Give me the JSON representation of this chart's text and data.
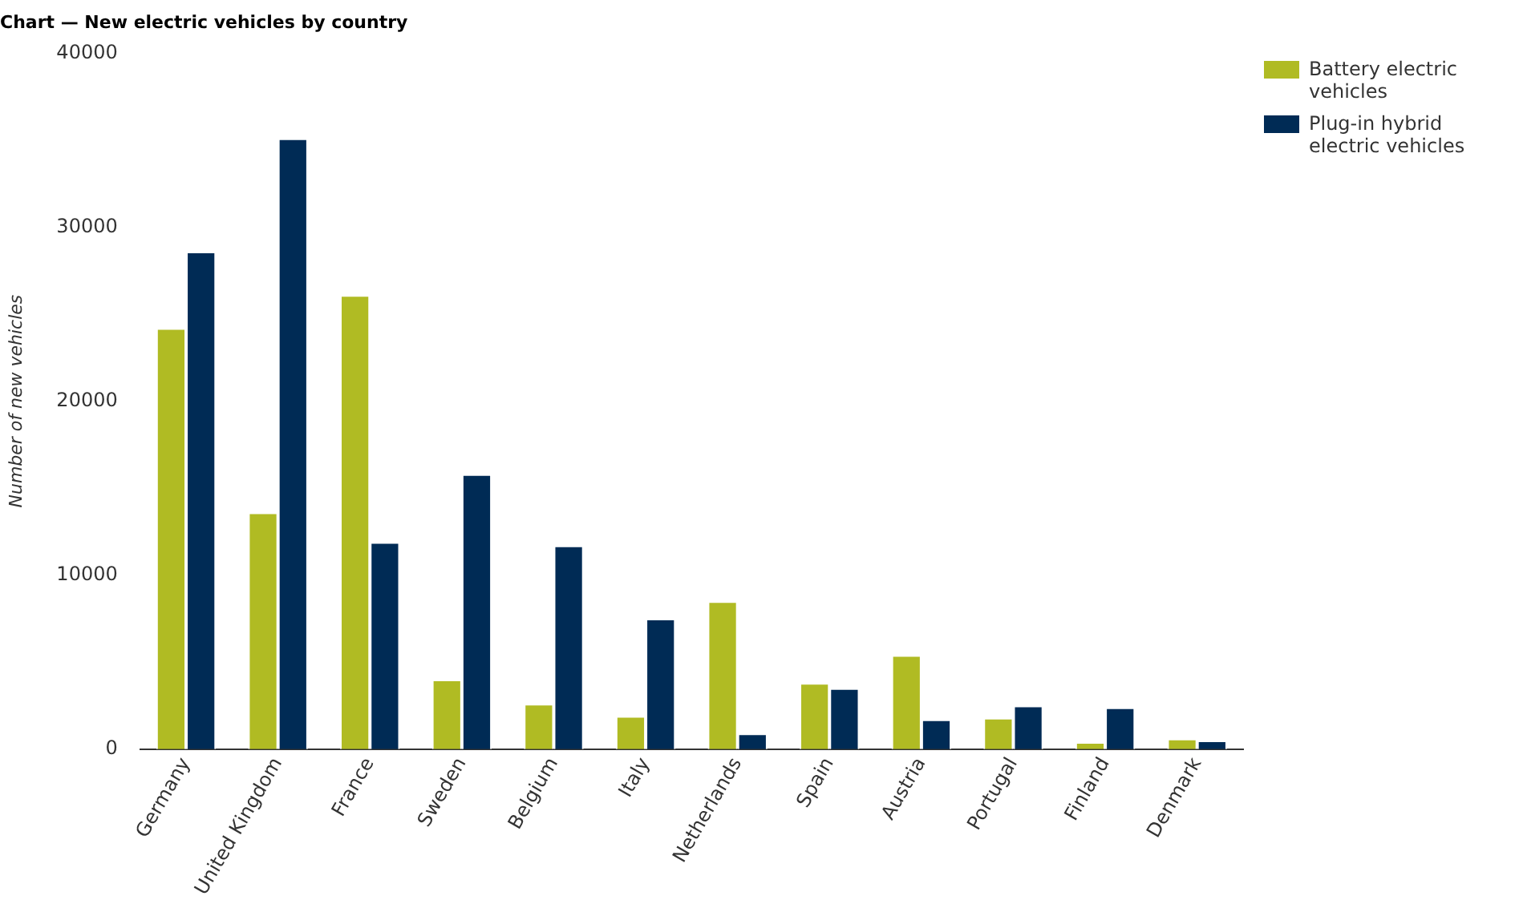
{
  "chart_data": {
    "type": "bar",
    "title": "Chart — New electric vehicles by country",
    "ylabel": "Number of new vehicles",
    "categories": [
      "Germany",
      "United Kingdom",
      "France",
      "Sweden",
      "Belgium",
      "Italy",
      "Netherlands",
      "Spain",
      "Austria",
      "Portugal",
      "Finland",
      "Denmark"
    ],
    "series": [
      {
        "name": "Battery electric vehicles",
        "color": "#b0bb23",
        "values": [
          24200,
          13600,
          26100,
          4000,
          2600,
          1900,
          8500,
          3800,
          5400,
          1800,
          400,
          600
        ]
      },
      {
        "name": "Plug-in hybrid electric vehicles",
        "color": "#002b55",
        "values": [
          28600,
          35100,
          11900,
          15800,
          11700,
          7500,
          900,
          3500,
          1700,
          2500,
          2400,
          500
        ]
      }
    ],
    "ylim": [
      0,
      40000
    ],
    "yticks": [
      0,
      10000,
      20000,
      30000,
      40000
    ],
    "grid": false,
    "legend": "top right"
  }
}
